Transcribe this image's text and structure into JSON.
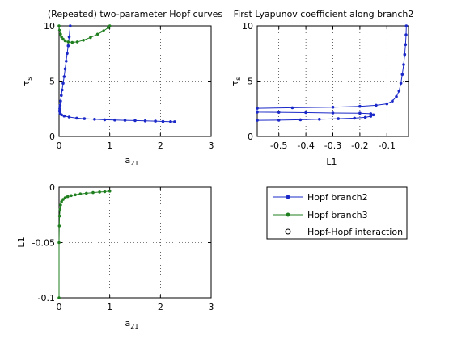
{
  "colors": {
    "branch2": "#1a28c8",
    "branch3": "#1f7f1f",
    "grid": "#000000"
  },
  "legend": {
    "items": [
      {
        "label": "Hopf branch2",
        "color": "#1a28c8",
        "marker": "dot"
      },
      {
        "label": "Hopf branch3",
        "color": "#1f7f1f",
        "marker": "dot"
      },
      {
        "label": "Hopf-Hopf interaction",
        "color": "#000000",
        "marker": "circle"
      }
    ]
  },
  "chart_data": [
    {
      "type": "line",
      "title": "(Repeated) two-parameter Hopf curves",
      "xlabel": "a",
      "xlabel_sub": "21",
      "ylabel": "τ",
      "ylabel_sub": "s",
      "xlim": [
        0,
        3
      ],
      "ylim": [
        0,
        10
      ],
      "xticks": [
        0,
        1,
        2,
        3
      ],
      "yticks": [
        0,
        5,
        10
      ],
      "grid": true,
      "series": [
        {
          "name": "Hopf branch2",
          "color": "#1a28c8",
          "x": [
            0.22,
            0.2,
            0.18,
            0.16,
            0.14,
            0.12,
            0.1,
            0.08,
            0.06,
            0.045,
            0.03,
            0.02,
            0.015,
            0.01,
            0.02,
            0.05,
            0.1,
            0.2,
            0.35,
            0.5,
            0.7,
            0.9,
            1.1,
            1.3,
            1.5,
            1.7,
            1.9,
            2.05,
            2.2,
            2.28
          ],
          "y": [
            10.0,
            9.0,
            8.2,
            7.5,
            6.8,
            6.1,
            5.4,
            4.8,
            4.2,
            3.7,
            3.2,
            2.8,
            2.5,
            2.3,
            2.1,
            1.95,
            1.85,
            1.75,
            1.65,
            1.6,
            1.55,
            1.5,
            1.48,
            1.45,
            1.43,
            1.4,
            1.38,
            1.35,
            1.33,
            1.32
          ]
        },
        {
          "name": "Hopf branch3",
          "color": "#1f7f1f",
          "x": [
            0.0,
            0.01,
            0.03,
            0.05,
            0.08,
            0.12,
            0.18,
            0.26,
            0.36,
            0.48,
            0.62,
            0.76,
            0.88,
            0.97,
            1.0
          ],
          "y": [
            10.0,
            9.6,
            9.25,
            9.0,
            8.8,
            8.65,
            8.55,
            8.5,
            8.55,
            8.7,
            8.95,
            9.25,
            9.55,
            9.85,
            10.0
          ]
        }
      ]
    },
    {
      "type": "line",
      "title": "First Lyapunov coefficient along branch2",
      "xlabel": "L1",
      "ylabel": "τ",
      "ylabel_sub": "s",
      "xlim": [
        -0.58,
        -0.02
      ],
      "ylim": [
        0,
        10
      ],
      "xticks": [
        -0.5,
        -0.4,
        -0.3,
        -0.2,
        -0.1
      ],
      "xticklabels": [
        "-0.5",
        "-0.4",
        "-0.3",
        "-0.2",
        "-0.1"
      ],
      "yticks": [
        0,
        5,
        10
      ],
      "grid": true,
      "series": [
        {
          "name": "Hopf branch2",
          "color": "#1a28c8",
          "x": [
            -0.58,
            -0.5,
            -0.42,
            -0.35,
            -0.28,
            -0.22,
            -0.18,
            -0.16,
            -0.15,
            -0.16,
            -0.2,
            -0.3,
            -0.4,
            -0.5,
            -0.58,
            -0.58,
            -0.45,
            -0.3,
            -0.2,
            -0.14,
            -0.1,
            -0.08,
            -0.065,
            -0.055,
            -0.048,
            -0.043,
            -0.038,
            -0.034,
            -0.031,
            -0.029,
            -0.028
          ],
          "y": [
            1.45,
            1.47,
            1.5,
            1.55,
            1.6,
            1.65,
            1.72,
            1.82,
            1.95,
            2.05,
            2.1,
            2.12,
            2.15,
            2.18,
            2.2,
            2.55,
            2.6,
            2.65,
            2.72,
            2.82,
            2.95,
            3.2,
            3.6,
            4.1,
            4.8,
            5.6,
            6.5,
            7.4,
            8.3,
            9.2,
            10.0
          ]
        }
      ]
    },
    {
      "type": "line",
      "title": "",
      "xlabel": "a",
      "xlabel_sub": "21",
      "ylabel": "L1",
      "xlim": [
        0,
        3
      ],
      "ylim": [
        -0.1,
        0
      ],
      "xticks": [
        0,
        1,
        2,
        3
      ],
      "yticks": [
        -0.1,
        -0.05,
        0
      ],
      "yticklabels": [
        "-0.1",
        "-0.05",
        "0"
      ],
      "grid": true,
      "series": [
        {
          "name": "Hopf branch3",
          "color": "#1f7f1f",
          "x": [
            0.0,
            0.0,
            0.005,
            0.01,
            0.02,
            0.03,
            0.05,
            0.08,
            0.12,
            0.17,
            0.24,
            0.32,
            0.42,
            0.54,
            0.67,
            0.8,
            0.9,
            1.0
          ],
          "y": [
            -0.1,
            -0.05,
            -0.035,
            -0.026,
            -0.02,
            -0.016,
            -0.013,
            -0.011,
            -0.0095,
            -0.0085,
            -0.0075,
            -0.0068,
            -0.006,
            -0.0054,
            -0.0048,
            -0.0043,
            -0.004,
            -0.0035
          ]
        }
      ]
    }
  ]
}
